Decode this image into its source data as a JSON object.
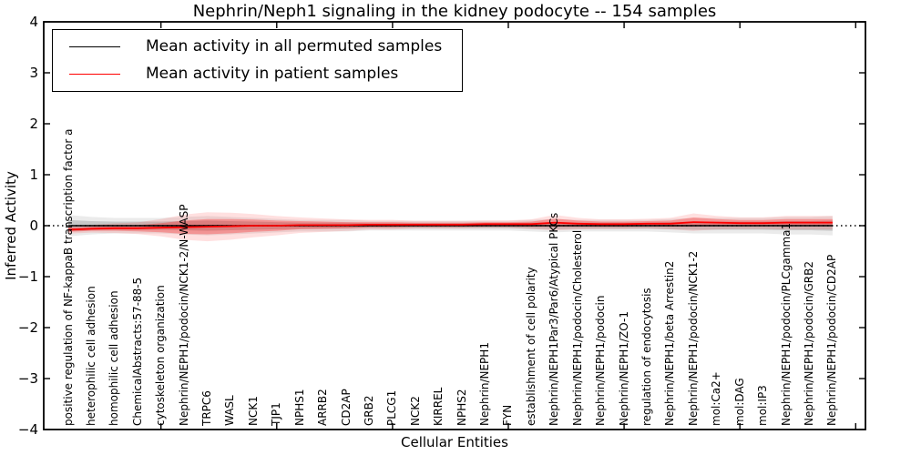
{
  "chart": {
    "title": "Nephrin/Neph1 signaling in the kidney podocyte -- 154 samples",
    "xlabel": "Cellular Entities",
    "ylabel": "Inferred Activity"
  },
  "legend": {
    "items": [
      {
        "label": "Mean activity in all permuted samples",
        "color": "#000000"
      },
      {
        "label": "Mean activity in patient samples",
        "color": "#ff0000"
      }
    ]
  },
  "y_ticks": [
    {
      "v": 4,
      "label": "4"
    },
    {
      "v": 3,
      "label": "3"
    },
    {
      "v": 2,
      "label": "2"
    },
    {
      "v": 1,
      "label": "1"
    },
    {
      "v": 0,
      "label": "0"
    },
    {
      "v": -1,
      "label": "−1"
    },
    {
      "v": -2,
      "label": "−2"
    },
    {
      "v": -3,
      "label": "−3"
    },
    {
      "v": -4,
      "label": "−4"
    }
  ],
  "chart_data": {
    "type": "line",
    "title": "Nephrin/Neph1 signaling in the kidney podocyte -- 154 samples",
    "xlabel": "Cellular Entities",
    "ylabel": "Inferred Activity",
    "ylim": [
      -4,
      4
    ],
    "grid": false,
    "legend_position": "upper left",
    "zero_line": {
      "y": 0,
      "style": "dotted",
      "color": "#000000"
    },
    "x_major_tick_step": 5,
    "categories": [
      "positive regulation of NF-kappaB transcription factor a",
      "heterophilic cell adhesion",
      "homophilic cell adhesion",
      "ChemicalAbstracts:57-88-5",
      "cytoskeleton organization",
      "Nephrin/NEPH1/podocin/NCK1-2/N-WASP",
      "TRPC6",
      "WASL",
      "NCK1",
      "TJP1",
      "NPHS1",
      "ARRB2",
      "CD2AP",
      "GRB2",
      "PLCG1",
      "NCK2",
      "KIRREL",
      "NPHS2",
      "Nephrin/NEPH1",
      "FYN",
      "establishment of cell polarity",
      "Nephrin/NEPH1Par3/Par6/Atypical PKCs",
      "Nephrin/NEPH1/podocin/Cholesterol",
      "Nephrin/NEPH1/podocin",
      "Nephrin/NEPH1/ZO-1",
      "regulation of endocytosis",
      "Nephrin/NEPH1/beta Arrestin2",
      "Nephrin/NEPH1/podocin/NCK1-2",
      "mol:Ca2+",
      "mol:DAG",
      "mol:IP3",
      "Nephrin/NEPH1/podocin/PLCgamma1",
      "Nephrin/NEPH1/podocin/GRB2",
      "Nephrin/NEPH1/podocin/CD2AP"
    ],
    "series": [
      {
        "name": "Mean activity in all permuted samples",
        "color": "#000000",
        "values": [
          0,
          0,
          0,
          0,
          0,
          0,
          0,
          0,
          0,
          0,
          0,
          0,
          0,
          0,
          0,
          0,
          0,
          0,
          0,
          0,
          0,
          0,
          0,
          0,
          0,
          0,
          0,
          0,
          0,
          0,
          0,
          0,
          0,
          0
        ],
        "band_halfwidth": [
          0.11,
          0.09,
          0.08,
          0.08,
          0.08,
          0.09,
          0.1,
          0.09,
          0.08,
          0.07,
          0.06,
          0.06,
          0.06,
          0.05,
          0.05,
          0.05,
          0.05,
          0.05,
          0.05,
          0.05,
          0.06,
          0.07,
          0.06,
          0.06,
          0.06,
          0.06,
          0.07,
          0.08,
          0.08,
          0.08,
          0.08,
          0.09,
          0.09,
          0.1
        ]
      },
      {
        "name": "Mean activity in patient samples",
        "color": "#ff0000",
        "values": [
          -0.08,
          -0.06,
          -0.05,
          -0.05,
          -0.04,
          -0.03,
          -0.02,
          -0.01,
          0.0,
          0.0,
          0.01,
          0.01,
          0.01,
          0.02,
          0.02,
          0.02,
          0.02,
          0.02,
          0.03,
          0.03,
          0.03,
          0.06,
          0.04,
          0.03,
          0.03,
          0.04,
          0.04,
          0.07,
          0.06,
          0.05,
          0.05,
          0.06,
          0.06,
          0.06
        ],
        "band_halfwidth": [
          0.04,
          0.04,
          0.05,
          0.06,
          0.09,
          0.13,
          0.15,
          0.14,
          0.12,
          0.1,
          0.08,
          0.07,
          0.06,
          0.05,
          0.05,
          0.04,
          0.04,
          0.04,
          0.04,
          0.04,
          0.05,
          0.08,
          0.06,
          0.05,
          0.05,
          0.05,
          0.06,
          0.09,
          0.07,
          0.06,
          0.06,
          0.07,
          0.07,
          0.07
        ]
      }
    ]
  }
}
